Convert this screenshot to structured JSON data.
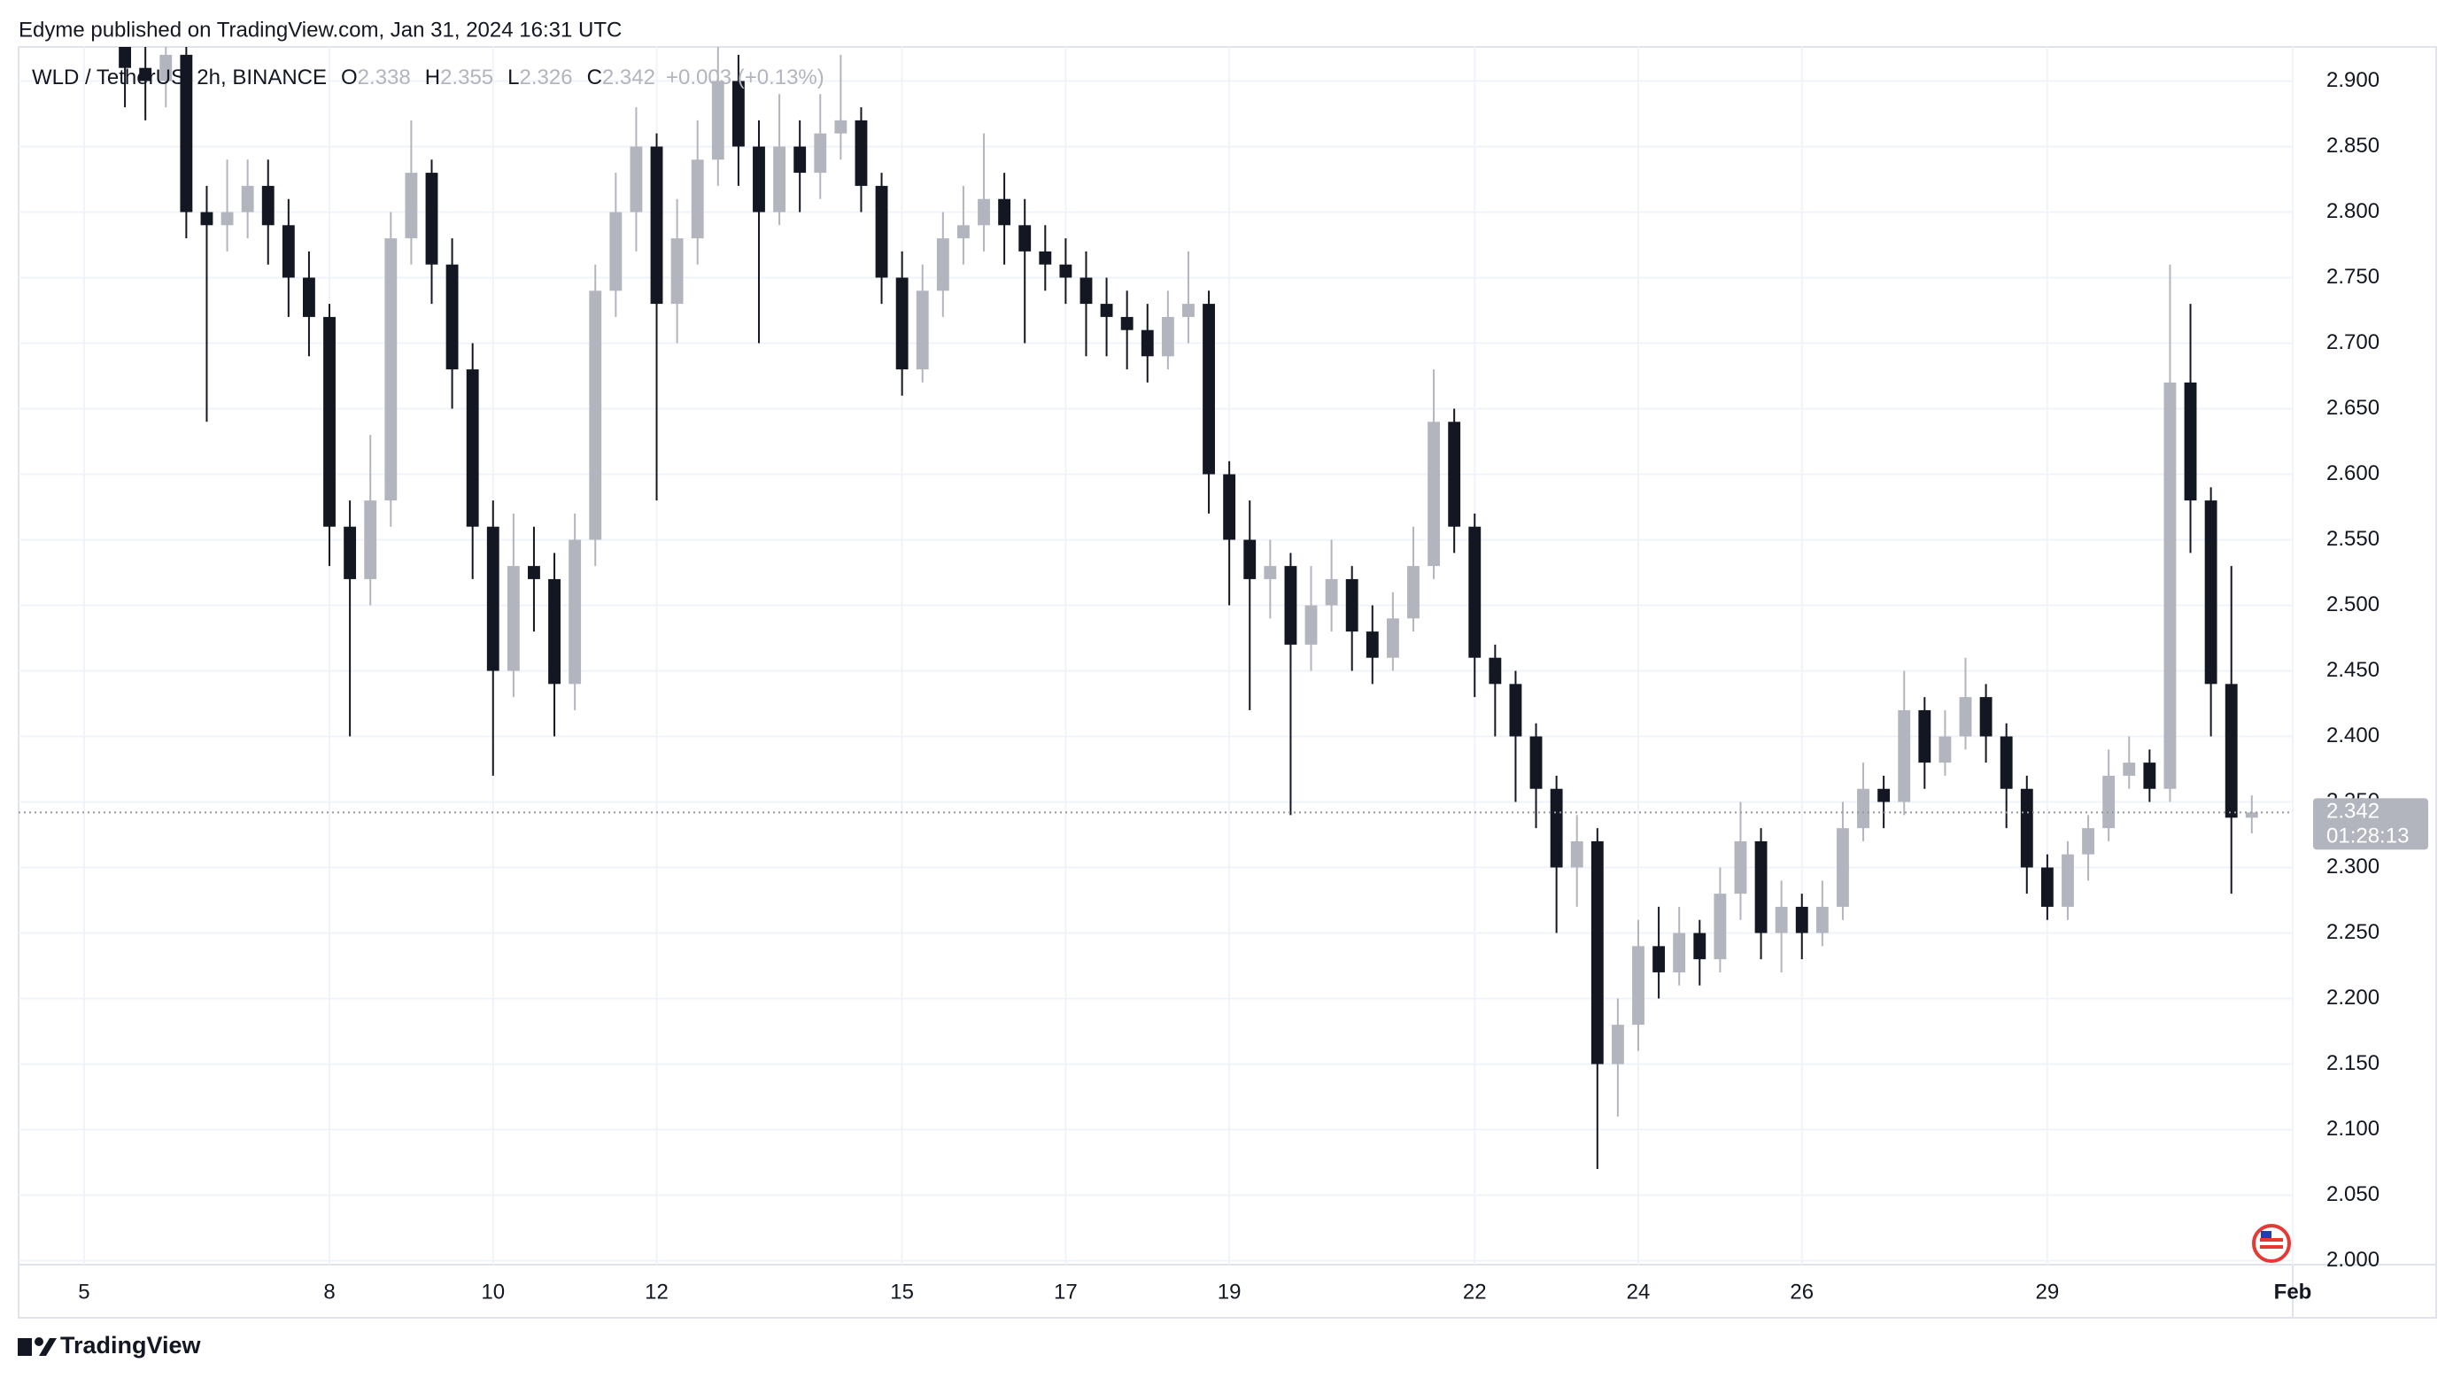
{
  "header": {
    "published": "Edyme published on TradingView.com, Jan 31, 2024 16:31 UTC"
  },
  "footer": {
    "brand": "TradingView"
  },
  "chart_data": {
    "type": "candlestick",
    "title": "WLD / TetherUS, 2h, BINANCE",
    "legend_ohlc": {
      "labels": [
        "O",
        "H",
        "L",
        "C"
      ],
      "values": [
        2.338,
        2.355,
        2.326,
        2.342
      ],
      "change": "+0.003 (+0.13%)"
    },
    "last_price": 2.342,
    "countdown": "01:28:13",
    "up_color": "#b2b5be",
    "down_color": "#131722",
    "grid": true,
    "xlim": [
      4.2,
      32.0
    ],
    "xticks": [
      5,
      8,
      10,
      12,
      15,
      17,
      19,
      22,
      24,
      26,
      29,
      {
        "value": 32,
        "label": "Feb"
      }
    ],
    "ylim": [
      1.997,
      2.926
    ],
    "yticks": [
      {
        "value": 2.0,
        "label": "2.000"
      },
      {
        "value": 2.05,
        "label": "2.050"
      },
      {
        "value": 2.1,
        "label": "2.100"
      },
      {
        "value": 2.15,
        "label": "2.150"
      },
      {
        "value": 2.2,
        "label": "2.200"
      },
      {
        "value": 2.25,
        "label": "2.250"
      },
      {
        "value": 2.3,
        "label": "2.300"
      },
      {
        "value": 2.35,
        "label": "2.350"
      },
      {
        "value": 2.4,
        "label": "2.400"
      },
      {
        "value": 2.45,
        "label": "2.450"
      },
      {
        "value": 2.5,
        "label": "2.500"
      },
      {
        "value": 2.55,
        "label": "2.550"
      },
      {
        "value": 2.6,
        "label": "2.600"
      },
      {
        "value": 2.65,
        "label": "2.650"
      },
      {
        "value": 2.7,
        "label": "2.700"
      },
      {
        "value": 2.75,
        "label": "2.750"
      },
      {
        "value": 2.8,
        "label": "2.800"
      },
      {
        "value": 2.85,
        "label": "2.850"
      },
      {
        "value": 2.9,
        "label": "2.900"
      }
    ],
    "x": [
      5.5,
      5.75,
      6,
      6.25,
      6.5,
      6.75,
      7,
      7.25,
      7.5,
      7.75,
      8,
      8.25,
      8.5,
      8.75,
      9,
      9.25,
      9.5,
      9.75,
      10,
      10.25,
      10.5,
      10.75,
      11,
      11.25,
      11.5,
      11.75,
      12,
      12.25,
      12.5,
      12.75,
      13,
      13.25,
      13.5,
      13.75,
      14,
      14.25,
      14.5,
      14.75,
      15,
      15.25,
      15.5,
      15.75,
      16,
      16.25,
      16.5,
      16.75,
      17,
      17.25,
      17.5,
      17.75,
      18,
      18.25,
      18.5,
      18.75,
      19,
      19.25,
      19.5,
      19.75,
      20,
      20.25,
      20.5,
      20.75,
      21,
      21.25,
      21.5,
      21.75,
      22,
      22.25,
      22.5,
      22.75,
      23,
      23.25,
      23.5,
      23.75,
      24,
      24.25,
      24.5,
      24.75,
      25,
      25.25,
      25.5,
      25.75,
      26,
      26.25,
      26.5,
      26.75,
      27,
      27.25,
      27.5,
      27.75,
      28,
      28.25,
      28.5,
      28.75,
      29,
      29.25,
      29.5,
      29.75,
      30,
      30.25,
      30.5,
      30.75,
      31,
      31.25,
      31.5
    ],
    "open": [
      2.93,
      2.91,
      2.9,
      2.92,
      2.8,
      2.79,
      2.8,
      2.82,
      2.79,
      2.75,
      2.72,
      2.56,
      2.52,
      2.58,
      2.78,
      2.83,
      2.76,
      2.68,
      2.56,
      2.45,
      2.53,
      2.52,
      2.44,
      2.55,
      2.74,
      2.8,
      2.85,
      2.73,
      2.78,
      2.84,
      2.9,
      2.85,
      2.8,
      2.85,
      2.83,
      2.86,
      2.87,
      2.82,
      2.75,
      2.68,
      2.74,
      2.78,
      2.79,
      2.81,
      2.79,
      2.77,
      2.76,
      2.75,
      2.73,
      2.72,
      2.71,
      2.69,
      2.72,
      2.73,
      2.6,
      2.55,
      2.52,
      2.53,
      2.47,
      2.5,
      2.52,
      2.48,
      2.46,
      2.49,
      2.53,
      2.64,
      2.56,
      2.46,
      2.44,
      2.4,
      2.36,
      2.3,
      2.32,
      2.15,
      2.18,
      2.24,
      2.22,
      2.25,
      2.23,
      2.28,
      2.32,
      2.25,
      2.27,
      2.25,
      2.27,
      2.33,
      2.36,
      2.35,
      2.42,
      2.38,
      2.4,
      2.43,
      2.4,
      2.36,
      2.3,
      2.27,
      2.31,
      2.33,
      2.37,
      2.38,
      2.36,
      2.67,
      2.58,
      2.44,
      2.338
    ],
    "high": [
      2.94,
      2.93,
      2.95,
      2.93,
      2.82,
      2.84,
      2.84,
      2.84,
      2.81,
      2.77,
      2.73,
      2.58,
      2.63,
      2.8,
      2.87,
      2.84,
      2.78,
      2.7,
      2.58,
      2.57,
      2.56,
      2.54,
      2.57,
      2.76,
      2.83,
      2.88,
      2.86,
      2.81,
      2.87,
      2.94,
      2.92,
      2.87,
      2.89,
      2.87,
      2.89,
      2.92,
      2.88,
      2.83,
      2.77,
      2.76,
      2.8,
      2.82,
      2.86,
      2.83,
      2.81,
      2.79,
      2.78,
      2.77,
      2.75,
      2.74,
      2.73,
      2.74,
      2.77,
      2.74,
      2.61,
      2.58,
      2.55,
      2.54,
      2.53,
      2.55,
      2.53,
      2.5,
      2.51,
      2.56,
      2.68,
      2.65,
      2.57,
      2.47,
      2.45,
      2.41,
      2.37,
      2.34,
      2.33,
      2.2,
      2.26,
      2.27,
      2.27,
      2.26,
      2.3,
      2.35,
      2.33,
      2.29,
      2.28,
      2.29,
      2.35,
      2.38,
      2.37,
      2.45,
      2.43,
      2.42,
      2.46,
      2.44,
      2.41,
      2.37,
      2.31,
      2.32,
      2.34,
      2.39,
      2.4,
      2.39,
      2.76,
      2.73,
      2.59,
      2.53,
      2.355
    ],
    "low": [
      2.88,
      2.87,
      2.88,
      2.78,
      2.64,
      2.77,
      2.78,
      2.76,
      2.72,
      2.69,
      2.53,
      2.4,
      2.5,
      2.56,
      2.76,
      2.73,
      2.65,
      2.52,
      2.37,
      2.43,
      2.48,
      2.4,
      2.42,
      2.53,
      2.72,
      2.77,
      2.58,
      2.7,
      2.76,
      2.82,
      2.82,
      2.7,
      2.79,
      2.8,
      2.81,
      2.84,
      2.8,
      2.73,
      2.66,
      2.67,
      2.72,
      2.76,
      2.77,
      2.76,
      2.7,
      2.74,
      2.73,
      2.69,
      2.69,
      2.68,
      2.67,
      2.68,
      2.7,
      2.57,
      2.5,
      2.42,
      2.49,
      2.34,
      2.45,
      2.48,
      2.45,
      2.44,
      2.45,
      2.48,
      2.52,
      2.54,
      2.43,
      2.4,
      2.35,
      2.33,
      2.25,
      2.27,
      2.07,
      2.11,
      2.16,
      2.2,
      2.21,
      2.21,
      2.22,
      2.26,
      2.23,
      2.22,
      2.23,
      2.24,
      2.26,
      2.32,
      2.33,
      2.34,
      2.36,
      2.37,
      2.39,
      2.38,
      2.33,
      2.28,
      2.26,
      2.26,
      2.29,
      2.32,
      2.36,
      2.35,
      2.35,
      2.54,
      2.4,
      2.28,
      2.326
    ],
    "close": [
      2.91,
      2.9,
      2.92,
      2.8,
      2.79,
      2.8,
      2.82,
      2.79,
      2.75,
      2.72,
      2.56,
      2.52,
      2.58,
      2.78,
      2.83,
      2.76,
      2.68,
      2.56,
      2.45,
      2.53,
      2.52,
      2.44,
      2.55,
      2.74,
      2.8,
      2.85,
      2.73,
      2.78,
      2.84,
      2.9,
      2.85,
      2.8,
      2.85,
      2.83,
      2.86,
      2.87,
      2.82,
      2.75,
      2.68,
      2.74,
      2.78,
      2.79,
      2.81,
      2.79,
      2.77,
      2.76,
      2.75,
      2.73,
      2.72,
      2.71,
      2.69,
      2.72,
      2.73,
      2.6,
      2.55,
      2.52,
      2.53,
      2.47,
      2.5,
      2.52,
      2.48,
      2.46,
      2.49,
      2.53,
      2.64,
      2.56,
      2.46,
      2.44,
      2.4,
      2.36,
      2.3,
      2.32,
      2.15,
      2.18,
      2.24,
      2.22,
      2.25,
      2.23,
      2.28,
      2.32,
      2.25,
      2.27,
      2.25,
      2.27,
      2.33,
      2.36,
      2.35,
      2.42,
      2.38,
      2.4,
      2.43,
      2.4,
      2.36,
      2.3,
      2.27,
      2.31,
      2.33,
      2.37,
      2.38,
      2.36,
      2.67,
      2.58,
      2.44,
      2.338,
      2.342
    ]
  }
}
